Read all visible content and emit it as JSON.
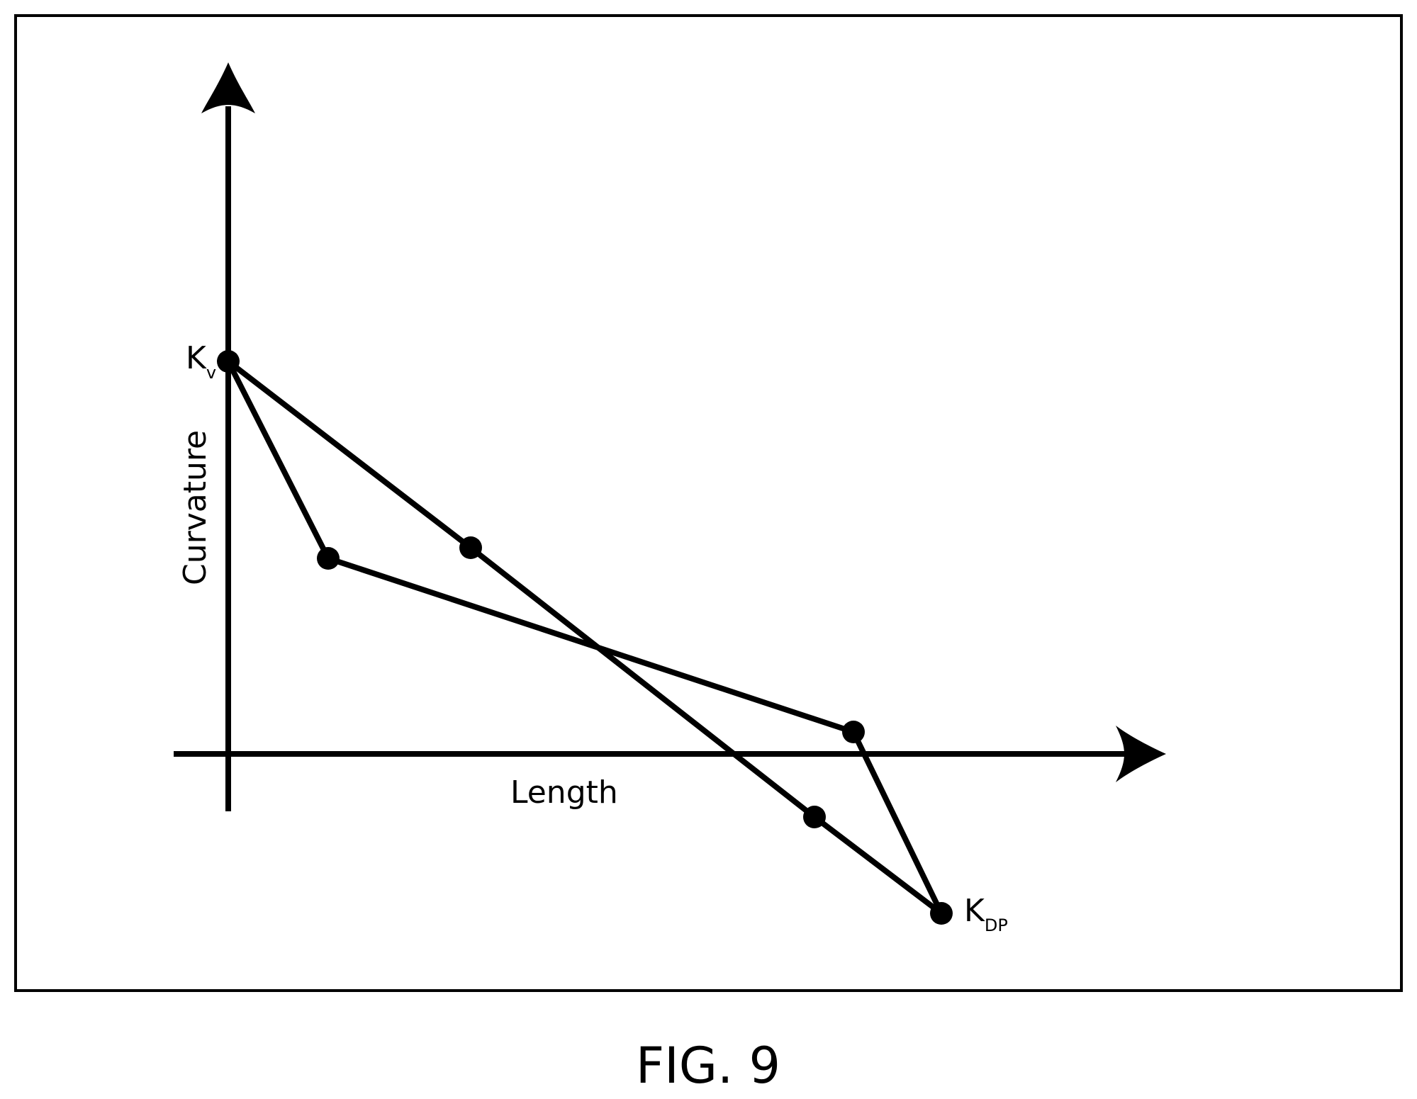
{
  "figure": {
    "caption": "FIG. 9",
    "x_axis_label": "Length",
    "y_axis_label": "Curvature",
    "points": {
      "start": {
        "main": "K",
        "sub": "v"
      },
      "end": {
        "main": "K",
        "sub": "DP"
      }
    },
    "paths": [
      {
        "name": "path-upper-dip",
        "node_count": 4
      },
      {
        "name": "path-straight",
        "node_count": 4
      }
    ],
    "colors": {
      "ink": "#000000",
      "background": "#ffffff"
    }
  }
}
